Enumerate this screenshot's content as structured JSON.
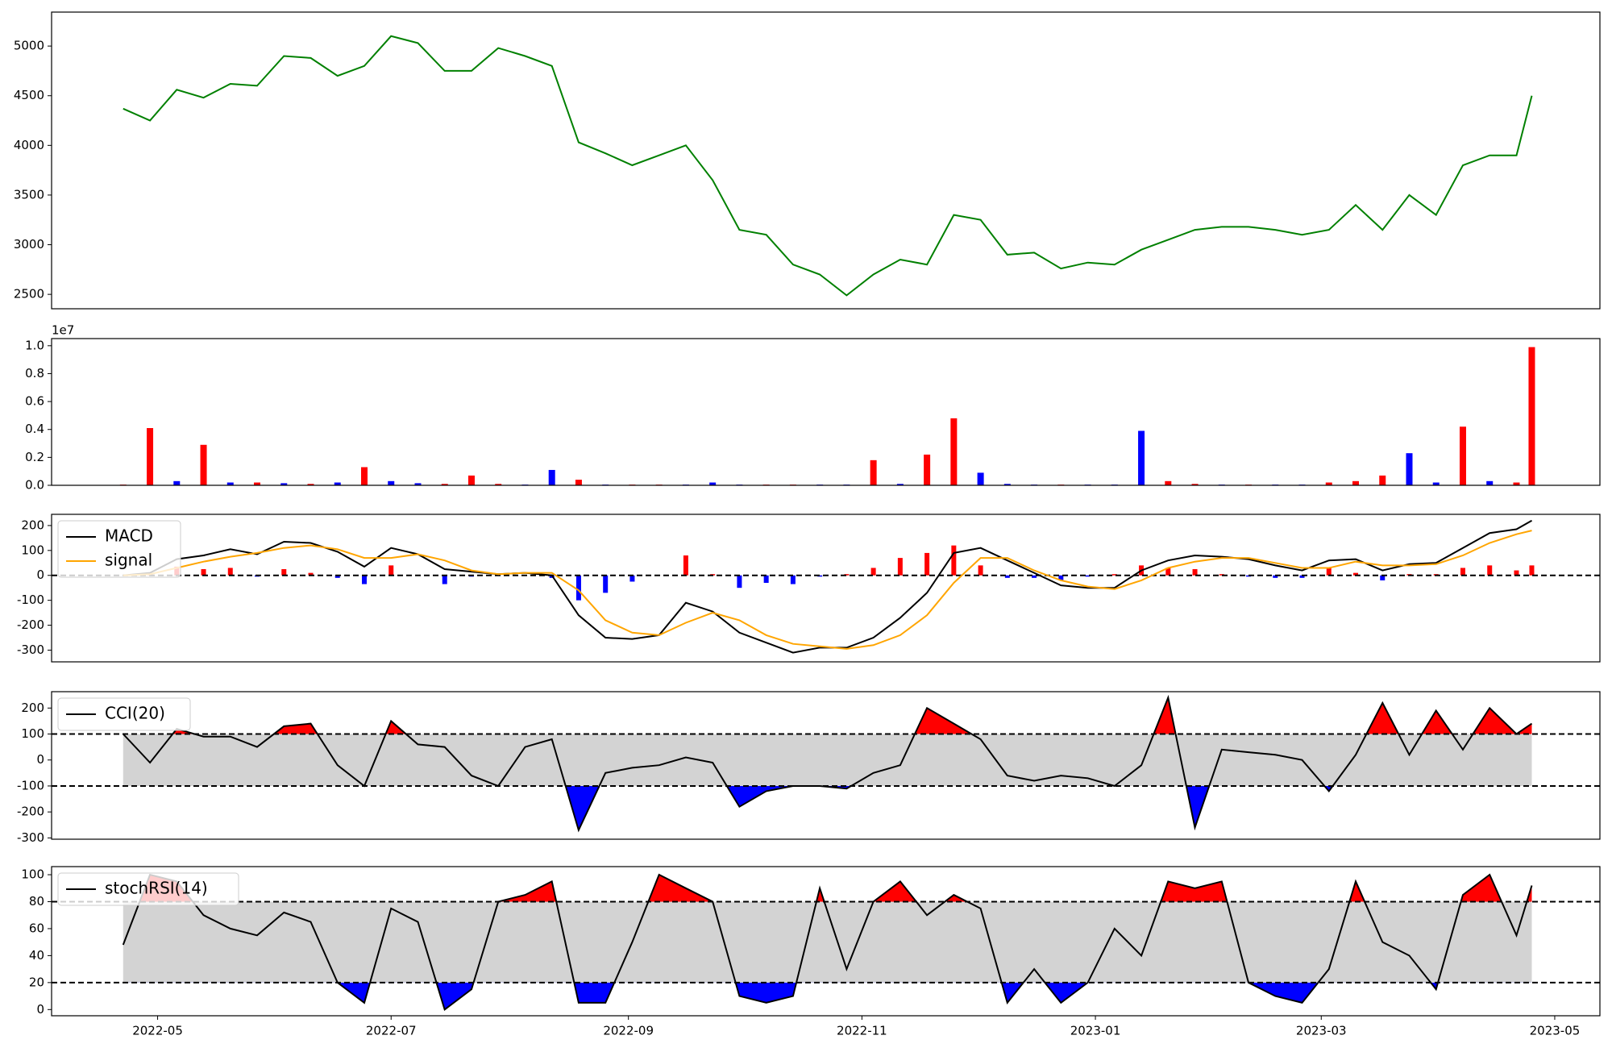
{
  "chart_data": [
    {
      "type": "line",
      "ylim": [
        2355,
        5342
      ],
      "yticks": [
        2500,
        3000,
        3500,
        4000,
        4500,
        5000
      ],
      "series": [
        {
          "color": "#008000",
          "values": [
            4370,
            4250,
            4560,
            4480,
            4620,
            4600,
            4900,
            4880,
            4700,
            4800,
            5100,
            5030,
            4750,
            4750,
            4980,
            4900,
            4800,
            4030,
            3920,
            3800,
            3900,
            4000,
            3650,
            3150,
            3100,
            2800,
            2700,
            2490,
            2700,
            2850,
            2800,
            3300,
            3250,
            2900,
            2920,
            2760,
            2820,
            2800,
            2950,
            3050,
            3150,
            3180,
            3180,
            3150,
            3100,
            3150,
            3400,
            3150,
            3500,
            3300,
            3800,
            3900,
            3900,
            4500
          ]
        }
      ]
    },
    {
      "type": "bar",
      "ylim": [
        0,
        10510000
      ],
      "y_offset_label": "1e7",
      "yticks": [
        {
          "value": 0,
          "label": "0.0"
        },
        {
          "value": 2000000,
          "label": "0.2"
        },
        {
          "value": 4000000,
          "label": "0.4"
        },
        {
          "value": 6000000,
          "label": "0.6"
        },
        {
          "value": 8000000,
          "label": "0.8"
        },
        {
          "value": 10000000,
          "label": "1.0"
        }
      ],
      "values": [
        50000,
        4100000,
        300000,
        2900000,
        200000,
        200000,
        150000,
        100000,
        200000,
        1300000,
        300000,
        150000,
        100000,
        700000,
        100000,
        50000,
        1100000,
        400000,
        50000,
        50000,
        50000,
        50000,
        200000,
        50000,
        50000,
        50000,
        50000,
        50000,
        1800000,
        100000,
        2200000,
        4800000,
        900000,
        100000,
        50000,
        50000,
        50000,
        50000,
        3900000,
        300000,
        100000,
        50000,
        50000,
        50000,
        50000,
        200000,
        300000,
        700000,
        2300000,
        200000,
        4200000,
        300000,
        200000,
        9900000
      ],
      "bar_colors": [
        "#ff0000",
        "#ff0000",
        "#0000ff",
        "#ff0000",
        "#0000ff",
        "#ff0000",
        "#0000ff",
        "#ff0000",
        "#0000ff",
        "#ff0000",
        "#0000ff",
        "#0000ff",
        "#ff0000",
        "#ff0000",
        "#ff0000",
        "#0000ff",
        "#0000ff",
        "#ff0000",
        "#0000ff",
        "#ff0000",
        "#ff0000",
        "#0000ff",
        "#0000ff",
        "#0000ff",
        "#ff0000",
        "#ff0000",
        "#0000ff",
        "#0000ff",
        "#ff0000",
        "#0000ff",
        "#ff0000",
        "#ff0000",
        "#0000ff",
        "#0000ff",
        "#0000ff",
        "#ff0000",
        "#0000ff",
        "#0000ff",
        "#0000ff",
        "#ff0000",
        "#ff0000",
        "#0000ff",
        "#ff0000",
        "#0000ff",
        "#0000ff",
        "#ff0000",
        "#ff0000",
        "#ff0000",
        "#0000ff",
        "#0000ff",
        "#ff0000",
        "#0000ff",
        "#ff0000",
        "#ff0000"
      ]
    },
    {
      "type": "macd",
      "ylim": [
        -347,
        245
      ],
      "yticks": [
        -300,
        -200,
        -100,
        0,
        100,
        200
      ],
      "legend": "upper left",
      "zero_line": true,
      "series": [
        {
          "name": "MACD",
          "color": "#000000",
          "values": [
            0,
            10,
            65,
            80,
            105,
            85,
            135,
            130,
            95,
            35,
            110,
            85,
            25,
            15,
            5,
            10,
            0,
            -160,
            -250,
            -255,
            -240,
            -110,
            -145,
            -230,
            -270,
            -310,
            -290,
            -290,
            -250,
            -170,
            -70,
            90,
            110,
            60,
            10,
            -40,
            -50,
            -50,
            20,
            60,
            80,
            75,
            65,
            40,
            20,
            60,
            65,
            20,
            45,
            50,
            110,
            170,
            185,
            220
          ]
        },
        {
          "name": "signal",
          "color": "#ffa500",
          "values": [
            0,
            5,
            30,
            55,
            75,
            90,
            110,
            120,
            105,
            70,
            70,
            85,
            60,
            20,
            5,
            10,
            10,
            -60,
            -180,
            -230,
            -240,
            -190,
            -150,
            -180,
            -240,
            -275,
            -285,
            -295,
            -280,
            -240,
            -160,
            -30,
            70,
            70,
            20,
            -20,
            -45,
            -55,
            -20,
            30,
            55,
            70,
            70,
            50,
            30,
            30,
            55,
            40,
            40,
            45,
            80,
            130,
            165,
            180
          ]
        }
      ],
      "histogram": {
        "positive_color": "#ff0000",
        "negative_color": "#0000ff",
        "values": [
          0,
          5,
          35,
          25,
          30,
          -5,
          25,
          10,
          -10,
          -35,
          40,
          0,
          -35,
          -5,
          0,
          0,
          -10,
          -100,
          -70,
          -25,
          0,
          80,
          5,
          -50,
          -30,
          -35,
          -5,
          5,
          30,
          70,
          90,
          120,
          40,
          -10,
          -10,
          -20,
          -5,
          5,
          40,
          30,
          25,
          5,
          -5,
          -10,
          -10,
          30,
          10,
          -20,
          5,
          5,
          30,
          40,
          20,
          40
        ]
      }
    },
    {
      "type": "oscillator",
      "ylim": [
        -305,
        263
      ],
      "yticks": [
        -300,
        -200,
        -100,
        0,
        100,
        200
      ],
      "legend": "upper left",
      "levels": [
        100,
        -100
      ],
      "band_color": "#d3d3d3",
      "above_color": "#ff0000",
      "below_color": "#0000ff",
      "series": [
        {
          "name": "CCI(20)",
          "color": "#000000",
          "values": [
            100,
            -10,
            120,
            90,
            90,
            50,
            130,
            140,
            -20,
            -100,
            150,
            60,
            50,
            -60,
            -100,
            50,
            80,
            -270,
            -50,
            -30,
            -20,
            10,
            -10,
            -180,
            -120,
            -100,
            -100,
            -110,
            -50,
            -20,
            200,
            140,
            80,
            -60,
            -80,
            -60,
            -70,
            -100,
            -20,
            240,
            -260,
            40,
            30,
            20,
            0,
            -120,
            20,
            220,
            20,
            190,
            40,
            200,
            100,
            140
          ]
        }
      ]
    },
    {
      "type": "oscillator",
      "ylim": [
        -4.6,
        106
      ],
      "yticks": [
        0,
        20,
        40,
        60,
        80,
        100
      ],
      "legend": "upper left",
      "levels": [
        80,
        20
      ],
      "band_color": "#d3d3d3",
      "above_color": "#ff0000",
      "below_color": "#0000ff",
      "series": [
        {
          "name": "stochRSI(14)",
          "color": "#000000",
          "values": [
            48,
            100,
            95,
            70,
            60,
            55,
            72,
            65,
            20,
            5,
            75,
            65,
            0,
            15,
            80,
            85,
            95,
            5,
            5,
            50,
            100,
            90,
            80,
            10,
            5,
            10,
            90,
            30,
            80,
            95,
            70,
            85,
            75,
            5,
            30,
            5,
            20,
            60,
            40,
            95,
            90,
            95,
            20,
            10,
            5,
            30,
            95,
            50,
            40,
            15,
            85,
            100,
            55,
            92
          ]
        }
      ],
      "x": [
        19104,
        19111,
        19118,
        19125,
        19132,
        19139,
        19146,
        19153,
        19160,
        19167,
        19174,
        19181,
        19188,
        19195,
        19202,
        19209,
        19216,
        19223,
        19230,
        19237,
        19244,
        19251,
        19258,
        19265,
        19272,
        19279,
        19286,
        19293,
        19300,
        19307,
        19314,
        19321,
        19328,
        19335,
        19342,
        19349,
        19356,
        19363,
        19370,
        19377,
        19384,
        19391,
        19398,
        19405,
        19412,
        19419,
        19426,
        19433,
        19440,
        19447,
        19454,
        19461,
        19468,
        19472
      ],
      "xlim": [
        19085.3,
        19489.8
      ],
      "xticks": [
        {
          "value": 19113,
          "label": "2022-05"
        },
        {
          "value": 19174,
          "label": "2022-07"
        },
        {
          "value": 19236,
          "label": "2022-09"
        },
        {
          "value": 19297,
          "label": "2022-11"
        },
        {
          "value": 19358,
          "label": "2023-01"
        },
        {
          "value": 19417,
          "label": "2023-03"
        },
        {
          "value": 19478,
          "label": "2023-05"
        }
      ]
    }
  ]
}
